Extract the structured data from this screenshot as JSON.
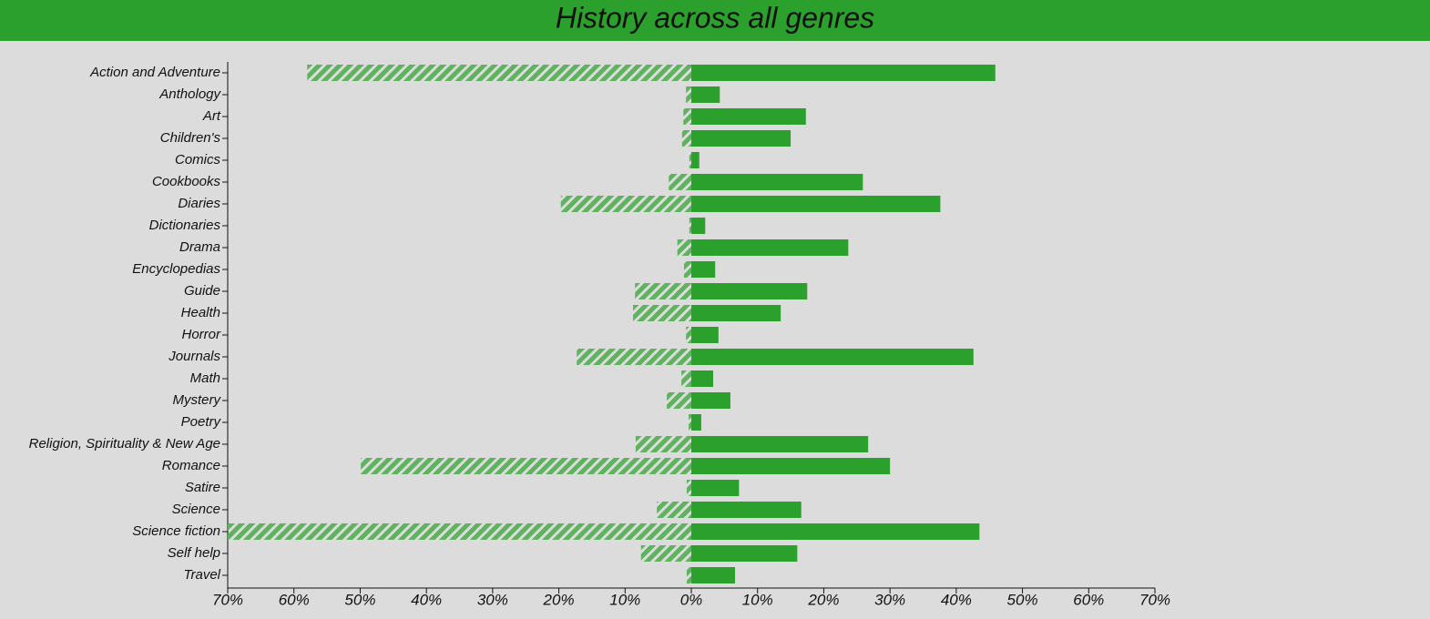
{
  "chart_data": {
    "type": "diverging-bar",
    "title": "History across all genres",
    "categories": [
      "Action and Adventure",
      "Anthology",
      "Art",
      "Children's",
      "Comics",
      "Cookbooks",
      "Diaries",
      "Dictionaries",
      "Drama",
      "Encyclopedias",
      "Guide",
      "Health",
      "Horror",
      "Journals",
      "Math",
      "Mystery",
      "Poetry",
      "Religion, Spirituality & New Age",
      "Romance",
      "Satire",
      "Science",
      "Science fiction",
      "Self help",
      "Travel"
    ],
    "series": [
      {
        "color": "#5fb35f",
        "pattern": "hatch",
        "values": [
          -58.0,
          -0.8,
          -1.2,
          -1.4,
          -0.3,
          -3.4,
          -19.7,
          -0.3,
          -2.1,
          -1.1,
          -8.5,
          -8.8,
          -0.8,
          -17.3,
          -1.5,
          -3.7,
          -0.4,
          -8.4,
          -49.9,
          -0.7,
          -5.2,
          -70.0,
          -7.6,
          -0.7
        ]
      },
      {
        "color": "#2ca02c",
        "pattern": "solid",
        "values": [
          45.9,
          4.3,
          17.3,
          15.0,
          1.2,
          25.9,
          37.6,
          2.1,
          23.7,
          3.6,
          17.5,
          13.5,
          4.1,
          42.6,
          3.3,
          5.9,
          1.5,
          26.7,
          30.0,
          7.2,
          16.6,
          43.5,
          16.0,
          6.6
        ]
      }
    ],
    "xlim": [
      -70,
      70
    ],
    "xticks": [
      {
        "value": -70,
        "label": "70%"
      },
      {
        "value": -60,
        "label": "60%"
      },
      {
        "value": -50,
        "label": "50%"
      },
      {
        "value": -40,
        "label": "40%"
      },
      {
        "value": -30,
        "label": "30%"
      },
      {
        "value": -20,
        "label": "20%"
      },
      {
        "value": -10,
        "label": "10%"
      },
      {
        "value": 0,
        "label": "0%"
      },
      {
        "value": 10,
        "label": "10%"
      },
      {
        "value": 20,
        "label": "20%"
      },
      {
        "value": 30,
        "label": "30%"
      },
      {
        "value": 40,
        "label": "40%"
      },
      {
        "value": 50,
        "label": "50%"
      },
      {
        "value": 60,
        "label": "60%"
      },
      {
        "value": 70,
        "label": "70%"
      }
    ],
    "header_color": "#2ca02c"
  }
}
